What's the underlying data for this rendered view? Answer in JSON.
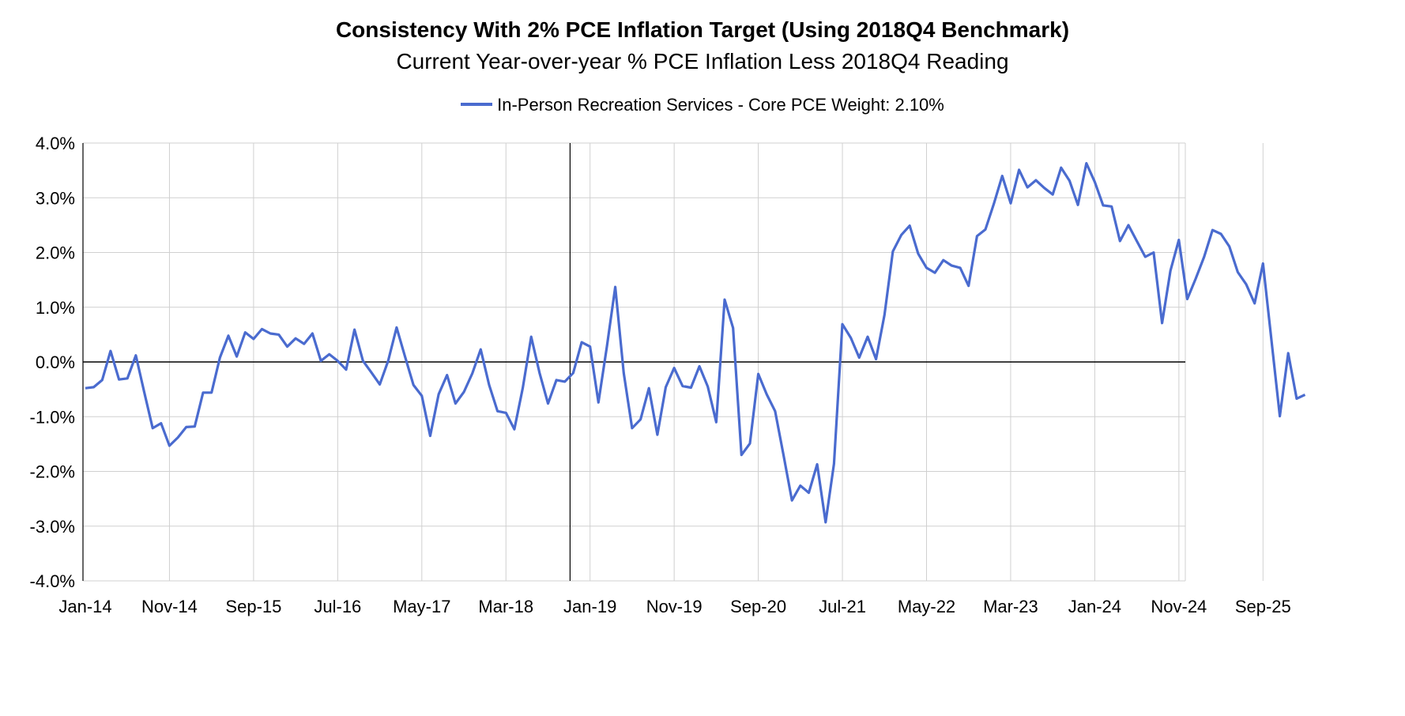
{
  "chart_data": {
    "type": "line",
    "title": "Consistency With 2% PCE Inflation Target (Using 2018Q4 Benchmark)",
    "subtitle": "Current Year-over-year % PCE Inflation Less 2018Q4 Reading",
    "xlabel": "",
    "ylabel": "",
    "ylim": [
      -4.0,
      4.0
    ],
    "yticks": [
      "4.0%",
      "3.0%",
      "2.0%",
      "1.0%",
      "0.0%",
      "-1.0%",
      "-2.0%",
      "-3.0%",
      "-4.0%"
    ],
    "ytick_values": [
      4,
      3,
      2,
      1,
      0,
      -1,
      -2,
      -3,
      -4
    ],
    "xticks": [
      "Jan-14",
      "Nov-14",
      "Sep-15",
      "Jul-16",
      "May-17",
      "Mar-18",
      "Jan-19",
      "Nov-19",
      "Sep-20",
      "Jul-21",
      "May-22",
      "Mar-23",
      "Jan-24",
      "Nov-24",
      "Sep-25"
    ],
    "xtick_index": [
      0,
      10,
      20,
      30,
      40,
      50,
      60,
      70,
      80,
      90,
      100,
      110,
      120,
      130,
      140
    ],
    "benchmark_index": 58,
    "grid": true,
    "legend": "top-center",
    "series": [
      {
        "name": "In-Person Recreation Services - Core PCE Weight: 2.10%",
        "color": "#4a6bcf",
        "start": "Jan-14",
        "values": [
          -0.48,
          -0.46,
          -0.33,
          0.2,
          -0.32,
          -0.3,
          0.12,
          -0.55,
          -1.21,
          -1.12,
          -1.53,
          -1.38,
          -1.19,
          -1.18,
          -0.56,
          -0.56,
          0.08,
          0.48,
          0.1,
          0.54,
          0.42,
          0.6,
          0.52,
          0.5,
          0.28,
          0.43,
          0.33,
          0.52,
          0.02,
          0.14,
          0.02,
          -0.14,
          0.59,
          0.02,
          -0.19,
          -0.41,
          0.02,
          0.63,
          0.1,
          -0.42,
          -0.62,
          -1.35,
          -0.59,
          -0.24,
          -0.76,
          -0.55,
          -0.21,
          0.23,
          -0.42,
          -0.9,
          -0.93,
          -1.23,
          -0.48,
          0.46,
          -0.2,
          -0.76,
          -0.33,
          -0.36,
          -0.2,
          0.36,
          0.28,
          -0.74,
          0.28,
          1.37,
          -0.2,
          -1.21,
          -1.05,
          -0.48,
          -1.33,
          -0.46,
          -0.11,
          -0.44,
          -0.47,
          -0.08,
          -0.45,
          -1.1,
          1.14,
          0.62,
          -1.7,
          -1.49,
          -0.22,
          -0.59,
          -0.9,
          -1.7,
          -2.53,
          -2.26,
          -2.39,
          -1.87,
          -2.93,
          -1.86,
          0.69,
          0.44,
          0.08,
          0.46,
          0.05,
          0.86,
          2.02,
          2.32,
          2.49,
          1.98,
          1.72,
          1.63,
          1.86,
          1.76,
          1.72,
          1.39,
          2.3,
          2.42,
          2.89,
          3.4,
          2.9,
          3.51,
          3.19,
          3.32,
          3.18,
          3.06,
          3.55,
          3.31,
          2.87,
          3.63,
          3.29,
          2.86,
          2.84,
          2.21,
          2.5,
          2.21,
          1.92,
          2.0,
          0.71,
          1.67,
          2.23,
          1.15,
          1.52,
          1.92,
          2.41,
          2.34,
          2.11,
          1.64,
          1.42,
          1.07,
          1.8,
          0.41,
          -0.99,
          0.16,
          -0.67,
          -0.6
        ]
      }
    ]
  }
}
